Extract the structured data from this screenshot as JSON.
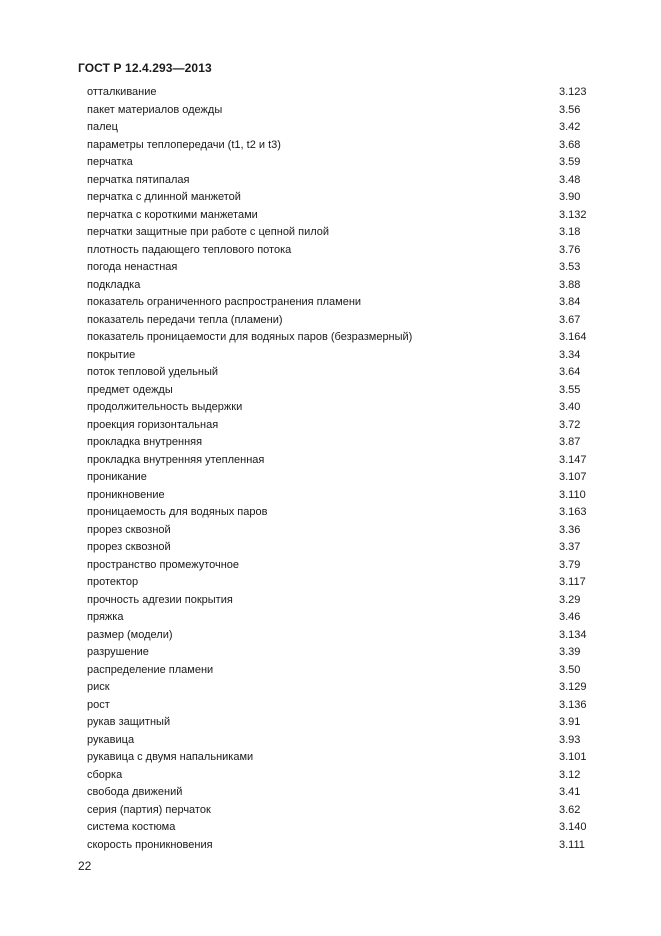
{
  "header": {
    "title": "ГОСТ Р 12.4.293—2013"
  },
  "entries": [
    {
      "term": "отталкивание",
      "ref": "3.123"
    },
    {
      "term": "пакет материалов одежды",
      "ref": "3.56"
    },
    {
      "term": "палец",
      "ref": "3.42"
    },
    {
      "term": "параметры теплопередачи (t1, t2 и t3)",
      "ref": "3.68"
    },
    {
      "term": "перчатка",
      "ref": "3.59"
    },
    {
      "term": "перчатка пятипалая",
      "ref": "3.48"
    },
    {
      "term": "перчатка с длинной манжетой",
      "ref": "3.90"
    },
    {
      "term": "перчатка с короткими манжетами",
      "ref": "3.132"
    },
    {
      "term": "перчатки защитные при работе с цепной пилой",
      "ref": "3.18"
    },
    {
      "term": "плотность падающего теплового потока",
      "ref": "3.76"
    },
    {
      "term": "погода ненастная",
      "ref": "3.53"
    },
    {
      "term": "подкладка",
      "ref": "3.88"
    },
    {
      "term": "показатель ограниченного распространения пламени",
      "ref": "3.84"
    },
    {
      "term": "показатель передачи тепла (пламени)",
      "ref": "3.67"
    },
    {
      "term": "показатель проницаемости для водяных паров (безразмерный)",
      "ref": "3.164"
    },
    {
      "term": "покрытие",
      "ref": "3.34"
    },
    {
      "term": "поток тепловой удельный",
      "ref": "3.64"
    },
    {
      "term": "предмет одежды",
      "ref": "3.55"
    },
    {
      "term": "продолжительность выдержки",
      "ref": "3.40"
    },
    {
      "term": "проекция горизонтальная",
      "ref": "3.72"
    },
    {
      "term": "прокладка внутренняя",
      "ref": "3.87"
    },
    {
      "term": "прокладка внутренняя утепленная",
      "ref": "3.147"
    },
    {
      "term": "проникание",
      "ref": "3.107"
    },
    {
      "term": "проникновение",
      "ref": "3.110"
    },
    {
      "term": "проницаемость для водяных паров",
      "ref": "3.163"
    },
    {
      "term": "прорез сквозной",
      "ref": "3.36"
    },
    {
      "term": "прорез сквозной",
      "ref": "3.37"
    },
    {
      "term": "пространство промежуточное",
      "ref": "3.79"
    },
    {
      "term": "протектор",
      "ref": "3.117"
    },
    {
      "term": "прочность адгезии покрытия",
      "ref": "3.29"
    },
    {
      "term": "пряжка",
      "ref": "3.46"
    },
    {
      "term": "размер (модели)",
      "ref": "3.134"
    },
    {
      "term": "разрушение",
      "ref": "3.39"
    },
    {
      "term": "распределение пламени",
      "ref": "3.50"
    },
    {
      "term": "риск",
      "ref": "3.129"
    },
    {
      "term": "рост",
      "ref": "3.136"
    },
    {
      "term": "рукав защитный",
      "ref": "3.91"
    },
    {
      "term": "рукавица",
      "ref": "3.93"
    },
    {
      "term": "рукавица с двумя напальниками",
      "ref": "3.101"
    },
    {
      "term": "сборка",
      "ref": "3.12"
    },
    {
      "term": "свобода движений",
      "ref": "3.41"
    },
    {
      "term": "серия (партия) перчаток",
      "ref": "3.62"
    },
    {
      "term": "система костюма",
      "ref": "3.140"
    },
    {
      "term": "скорость проникновения",
      "ref": "3.111"
    }
  ],
  "footer": {
    "page_number": "22"
  }
}
